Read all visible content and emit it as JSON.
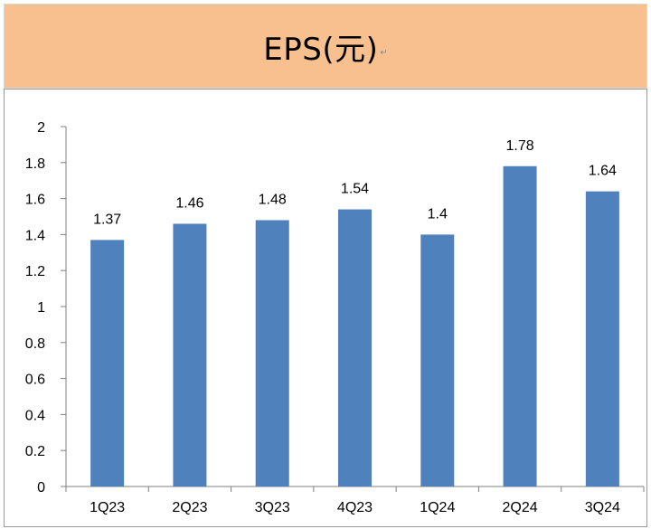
{
  "header": {
    "title": "EPS(元)",
    "background": "#f8c08f"
  },
  "chart_data": {
    "type": "bar",
    "title": "EPS(元)",
    "categories": [
      "1Q23",
      "2Q23",
      "3Q23",
      "4Q23",
      "1Q24",
      "2Q24",
      "3Q24"
    ],
    "values": [
      1.37,
      1.46,
      1.48,
      1.54,
      1.4,
      1.78,
      1.64
    ],
    "data_labels": [
      "1.37",
      "1.46",
      "1.48",
      "1.54",
      "1.4",
      "1.78",
      "1.64"
    ],
    "ylim": [
      0,
      2
    ],
    "yticks": [
      0,
      0.2,
      0.4,
      0.6,
      0.8,
      1,
      1.2,
      1.4,
      1.6,
      1.8,
      2
    ],
    "ytick_labels": [
      "0",
      "0.2",
      "0.4",
      "0.6",
      "0.8",
      "1",
      "1.2",
      "1.4",
      "1.6",
      "1.8",
      "2"
    ],
    "xlabel": "",
    "ylabel": "",
    "grid": false,
    "legend": "none",
    "bar_color": "#4f81bd"
  }
}
